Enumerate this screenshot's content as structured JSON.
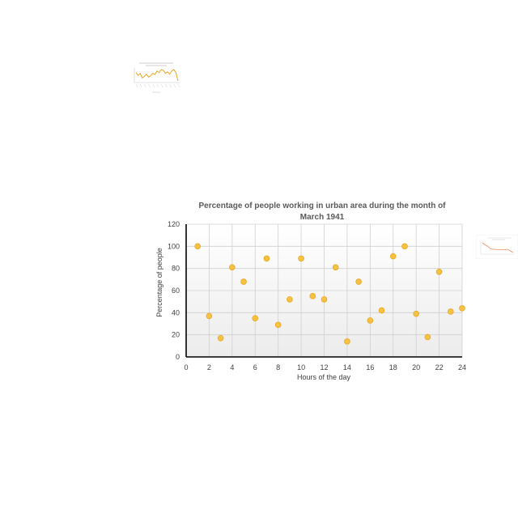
{
  "chart_data": [
    {
      "type": "scatter",
      "title_lines": [
        "Percentage of people working in urban area during the month of",
        "March 1941"
      ],
      "xlabel": "Hours of the day",
      "ylabel": "Percentage of people",
      "xlim": [
        0,
        24
      ],
      "ylim": [
        0,
        120
      ],
      "x_ticks": [
        0,
        2,
        4,
        6,
        8,
        10,
        12,
        14,
        16,
        18,
        20,
        22,
        24
      ],
      "y_ticks": [
        0,
        20,
        40,
        60,
        80,
        100,
        120
      ],
      "grid": true,
      "legend": "none",
      "marker_color": "#F5C242",
      "marker_edge_color": "#E8A623",
      "points": [
        {
          "x": 1,
          "y": 100
        },
        {
          "x": 2,
          "y": 37
        },
        {
          "x": 3,
          "y": 17
        },
        {
          "x": 4,
          "y": 81
        },
        {
          "x": 5,
          "y": 68
        },
        {
          "x": 6,
          "y": 35
        },
        {
          "x": 7,
          "y": 89
        },
        {
          "x": 8,
          "y": 29
        },
        {
          "x": 9,
          "y": 52
        },
        {
          "x": 10,
          "y": 89
        },
        {
          "x": 11,
          "y": 55
        },
        {
          "x": 12,
          "y": 52
        },
        {
          "x": 13,
          "y": 81
        },
        {
          "x": 14,
          "y": 14
        },
        {
          "x": 15,
          "y": 68
        },
        {
          "x": 16,
          "y": 33
        },
        {
          "x": 17,
          "y": 42
        },
        {
          "x": 18,
          "y": 91
        },
        {
          "x": 19,
          "y": 100
        },
        {
          "x": 20,
          "y": 39
        },
        {
          "x": 21,
          "y": 18
        },
        {
          "x": 22,
          "y": 77
        },
        {
          "x": 23,
          "y": 41
        },
        {
          "x": 24,
          "y": 44
        }
      ]
    },
    {
      "type": "line",
      "note": "tiny thumbnail chart, text unreadable",
      "line_color": "#E8A623",
      "values": [
        62,
        55,
        60,
        48,
        52,
        58,
        50,
        54,
        60,
        57,
        66,
        62,
        70,
        68,
        60,
        64,
        58,
        66,
        70,
        62,
        40
      ]
    },
    {
      "type": "line",
      "note": "tiny thumbnail chart, text unreadable",
      "line_color": "#F08A5D",
      "values": [
        90,
        80,
        72,
        60,
        58,
        57,
        56,
        55,
        56,
        58,
        50,
        42
      ]
    }
  ]
}
